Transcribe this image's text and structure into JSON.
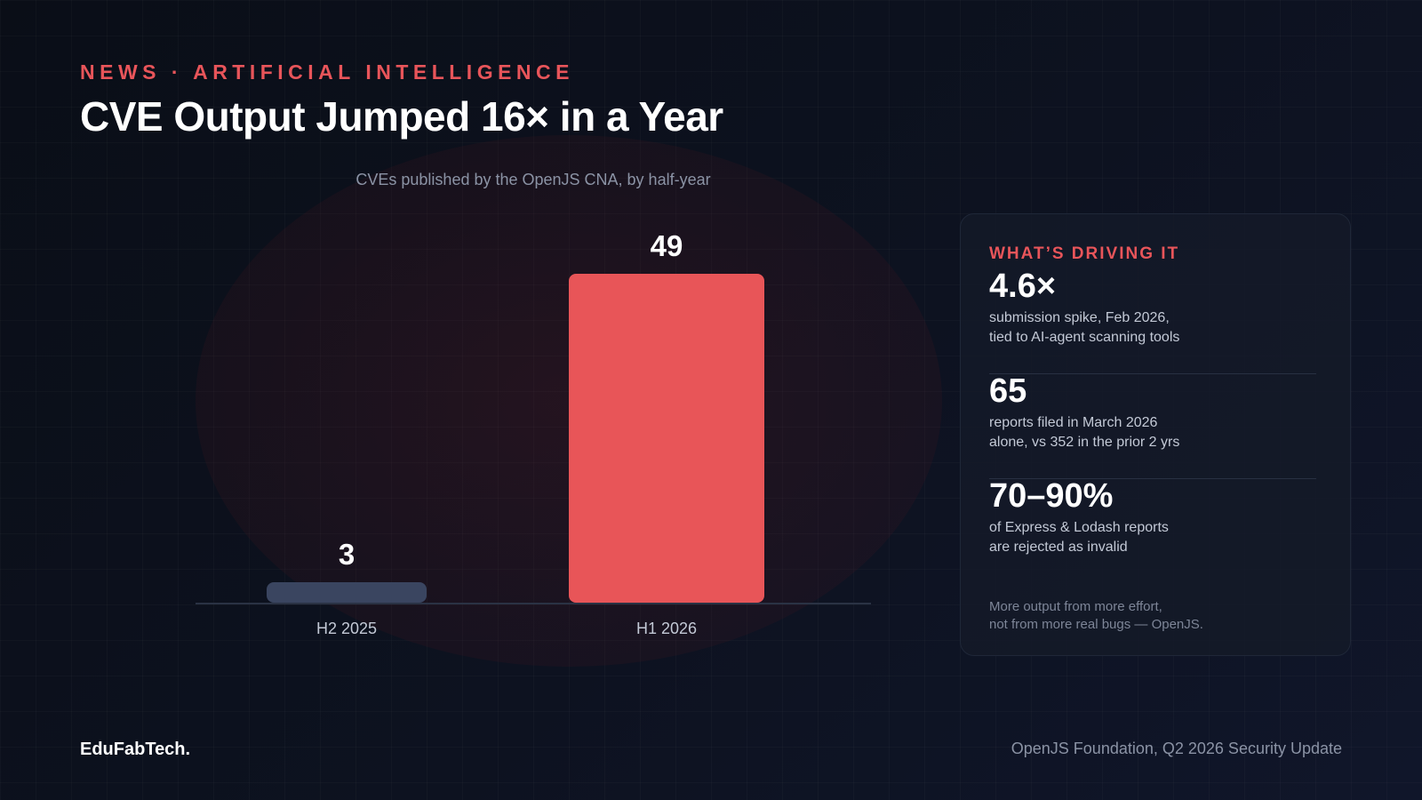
{
  "header": {
    "eyebrow": "NEWS · ARTIFICIAL INTELLIGENCE",
    "title": "CVE Output Jumped 16× in a Year"
  },
  "chart_data": {
    "type": "bar",
    "title": "CVEs published by the OpenJS CNA, by half-year",
    "categories": [
      "H2 2025",
      "H1 2026"
    ],
    "values": [
      3,
      49
    ],
    "data_labels": [
      "3",
      "49"
    ],
    "ylim": [
      0,
      49
    ],
    "grid": false,
    "bar_colors": [
      "#3a4560",
      "#e85558"
    ]
  },
  "panel": {
    "heading": "WHAT’S DRIVING IT",
    "stats": [
      {
        "value": "4.6×",
        "line1": "submission spike, Feb 2026,",
        "line2": "tied to AI-agent scanning tools"
      },
      {
        "value": "65",
        "line1": "reports filed in March 2026",
        "line2": "alone, vs 352 in the prior 2 yrs"
      },
      {
        "value": "70–90%",
        "line1": "of Express & Lodash reports",
        "line2": "are rejected as invalid"
      }
    ],
    "note_line1": "More output from more effort,",
    "note_line2": "not from more real bugs — OpenJS."
  },
  "footer": {
    "brand": "EduFabTech.",
    "source": "OpenJS Foundation, Q2 2026 Security Update"
  },
  "colors": {
    "accent": "#e8555a",
    "background": "#0b0f19",
    "muted_bar": "#3a4560"
  }
}
